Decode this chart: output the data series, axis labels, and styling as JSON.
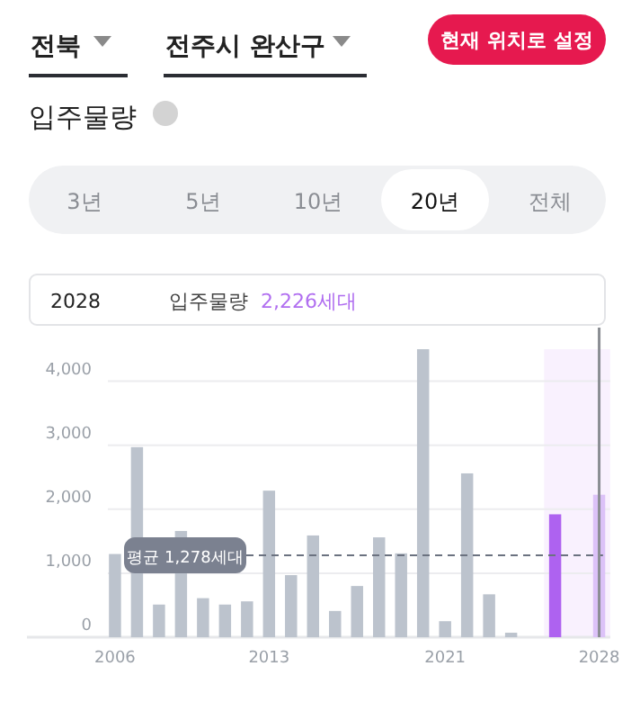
{
  "chart_data": {
    "type": "bar",
    "title": "입주물량",
    "annotations": [
      "전북",
      "전주시 완산구",
      "현재 위치로 설정",
      "3년",
      "5년",
      "10년",
      "20년",
      "전체",
      "2028",
      "입주물량",
      "2,226세대"
    ],
    "x": [
      2006,
      2007,
      2008,
      2009,
      2010,
      2011,
      2012,
      2013,
      2014,
      2015,
      2016,
      2017,
      2018,
      2019,
      2020,
      2021,
      2022,
      2023,
      2024,
      2025,
      2026,
      2027,
      2028
    ],
    "values": [
      1300,
      2970,
      510,
      1660,
      610,
      510,
      560,
      2290,
      970,
      1590,
      410,
      800,
      1560,
      1310,
      4500,
      250,
      2560,
      670,
      70,
      null,
      1920,
      null,
      2226
    ],
    "colors": [
      "#bcc3cd",
      "#bcc3cd",
      "#bcc3cd",
      "#bcc3cd",
      "#bcc3cd",
      "#bcc3cd",
      "#bcc3cd",
      "#bcc3cd",
      "#bcc3cd",
      "#bcc3cd",
      "#bcc3cd",
      "#bcc3cd",
      "#bcc3cd",
      "#bcc3cd",
      "#bcc3cd",
      "#bcc3cd",
      "#bcc3cd",
      "#bcc3cd",
      "#bcc3cd",
      null,
      "#ae62f0",
      null,
      "#dcc2f8"
    ],
    "xlim": [
      2002,
      2028.5
    ],
    "ylim": [
      0,
      4500
    ],
    "xticks": [
      2006,
      2013,
      2021,
      2028
    ],
    "yticks": [
      0,
      {
        "value": 1000,
        "label": "1,000"
      },
      {
        "value": 2000,
        "label": "2,000"
      },
      {
        "value": 3000,
        "label": "3,000"
      },
      {
        "value": 4000,
        "label": "4,000"
      }
    ],
    "grid": "y",
    "ref_lines": [
      {
        "axis": "y",
        "value": 1278,
        "label": "평균 1,278세대",
        "line_style": "dashed",
        "color": "#6b7280"
      },
      {
        "axis": "x",
        "value": 2028,
        "color": "#8a8d93"
      }
    ],
    "bands": [
      {
        "axis": "x",
        "from": 2025.5,
        "to": 2028.5,
        "color": "#f9f1fe"
      }
    ]
  }
}
